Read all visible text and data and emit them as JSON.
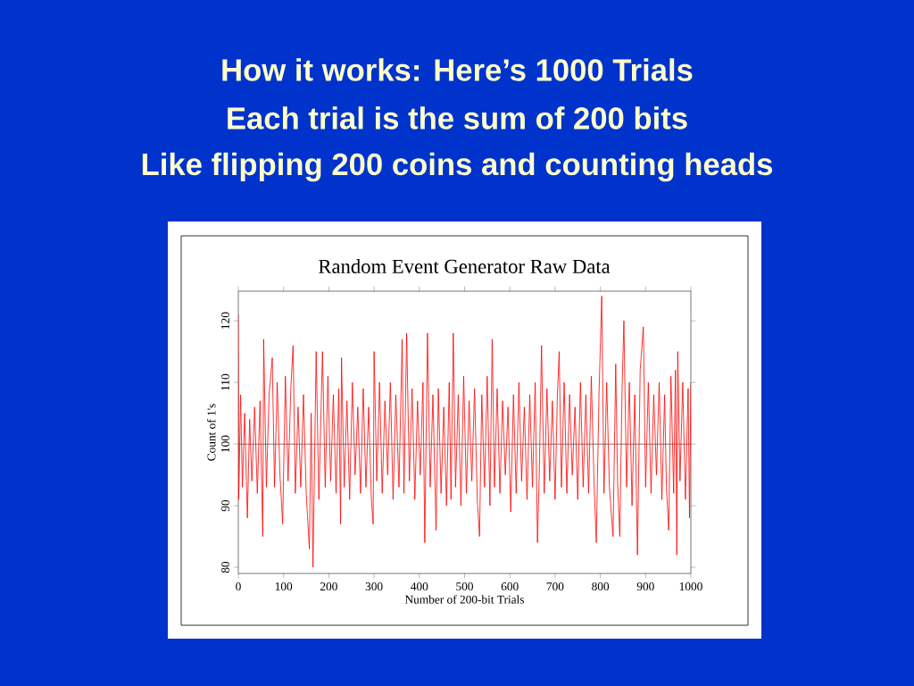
{
  "chart_data": {
    "type": "line",
    "title": "Random Event Generator Raw Data",
    "xlabel": "Number of 200-bit Trials",
    "ylabel": "Count of 1's",
    "annotations": [
      "How it works: Here’s 1000 Trials",
      "Each trial is the sum of 200 bits",
      "Like flipping 200 coins and counting heads"
    ],
    "xlim": [
      0,
      1000
    ],
    "ylim": [
      79,
      124.8
    ],
    "xticks": [
      0,
      100,
      200,
      300,
      400,
      500,
      600,
      700,
      800,
      900,
      1000
    ],
    "yticks": [
      80,
      90,
      100,
      110,
      120
    ],
    "ref_lines": [
      {
        "axis": "y",
        "value": 100,
        "color": "#000000"
      }
    ],
    "marker": "none",
    "line_style": "solid",
    "grid": false,
    "series": [
      {
        "color": "#ff0000",
        "x": [
          0,
          1,
          5,
          9,
          14,
          20,
          25,
          30,
          36,
          42,
          48,
          54,
          56,
          62,
          68,
          75,
          80,
          86,
          92,
          98,
          104,
          110,
          116,
          121,
          126,
          132,
          138,
          144,
          150,
          157,
          161,
          165,
          172,
          178,
          186,
          192,
          198,
          204,
          210,
          216,
          222,
          226,
          228,
          234,
          240,
          246,
          252,
          258,
          264,
          270,
          276,
          282,
          288,
          294,
          298,
          300,
          306,
          312,
          318,
          324,
          330,
          336,
          342,
          348,
          355,
          362,
          366,
          372,
          378,
          384,
          390,
          396,
          402,
          408,
          412,
          418,
          424,
          430,
          437,
          442,
          448,
          454,
          460,
          466,
          470,
          475,
          480,
          486,
          492,
          498,
          504,
          510,
          516,
          522,
          528,
          533,
          538,
          544,
          550,
          556,
          561,
          566,
          572,
          578,
          584,
          590,
          596,
          602,
          608,
          614,
          620,
          626,
          632,
          638,
          644,
          650,
          656,
          661,
          665,
          670,
          676,
          682,
          688,
          694,
          700,
          705,
          709,
          714,
          720,
          726,
          732,
          738,
          744,
          750,
          756,
          762,
          768,
          774,
          780,
          786,
          791,
          797,
          803,
          808,
          814,
          820,
          828,
          834,
          838,
          843,
          848,
          852,
          858,
          864,
          870,
          876,
          882,
          888,
          895,
          900,
          906,
          912,
          918,
          924,
          930,
          936,
          942,
          946,
          951,
          956,
          962,
          966,
          969,
          971,
          976,
          982,
          988,
          994,
          997,
          1000
        ],
        "values": [
          121,
          91,
          108,
          93,
          105,
          88,
          104,
          94,
          106,
          92,
          107,
          85,
          117,
          93,
          108,
          114,
          93,
          110,
          95,
          87,
          111,
          94,
          109,
          116,
          92,
          106,
          93,
          108,
          92,
          83,
          105,
          80,
          115,
          91,
          115,
          93,
          111,
          94,
          108,
          92,
          109,
          87,
          114,
          93,
          107,
          91,
          110,
          95,
          106,
          92,
          109,
          93,
          106,
          91,
          87,
          115,
          94,
          110,
          92,
          107,
          95,
          110,
          91,
          108,
          93,
          117,
          92,
          118,
          94,
          109,
          91,
          107,
          95,
          110,
          84,
          118,
          93,
          108,
          86,
          109,
          92,
          106,
          90,
          110,
          91,
          118,
          93,
          108,
          90,
          111,
          92,
          107,
          94,
          109,
          91,
          85,
          108,
          93,
          111,
          90,
          117,
          93,
          109,
          92,
          107,
          95,
          106,
          89,
          108,
          92,
          110,
          94,
          106,
          91,
          108,
          93,
          110,
          84,
          95,
          116,
          92,
          109,
          94,
          107,
          91,
          108,
          115,
          93,
          110,
          92,
          108,
          95,
          106,
          91,
          110,
          93,
          108,
          92,
          111,
          94,
          84,
          108,
          124,
          92,
          110,
          93,
          85,
          113,
          94,
          85,
          109,
          120,
          93,
          110,
          90,
          108,
          82,
          112,
          119,
          93,
          110,
          92,
          108,
          95,
          110,
          91,
          108,
          93,
          86,
          111,
          92,
          112,
          82,
          115,
          94,
          110,
          91,
          109,
          88,
          110
        ]
      }
    ]
  }
}
